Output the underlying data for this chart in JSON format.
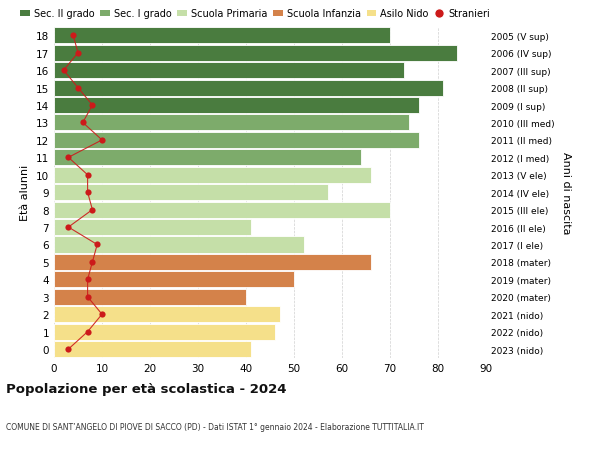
{
  "ages": [
    18,
    17,
    16,
    15,
    14,
    13,
    12,
    11,
    10,
    9,
    8,
    7,
    6,
    5,
    4,
    3,
    2,
    1,
    0
  ],
  "bar_values": [
    70,
    84,
    73,
    81,
    76,
    74,
    76,
    64,
    66,
    57,
    70,
    41,
    52,
    66,
    50,
    40,
    47,
    46,
    41
  ],
  "bar_colors": [
    "#4a7c3f",
    "#4a7c3f",
    "#4a7c3f",
    "#4a7c3f",
    "#4a7c3f",
    "#7dab6b",
    "#7dab6b",
    "#7dab6b",
    "#c5dfa8",
    "#c5dfa8",
    "#c5dfa8",
    "#c5dfa8",
    "#c5dfa8",
    "#d4824a",
    "#d4824a",
    "#d4824a",
    "#f5e08a",
    "#f5e08a",
    "#f5e08a"
  ],
  "stranieri_values": [
    4,
    5,
    2,
    5,
    8,
    6,
    10,
    3,
    7,
    7,
    8,
    3,
    9,
    8,
    7,
    7,
    10,
    7,
    3
  ],
  "right_labels": [
    "2005 (V sup)",
    "2006 (IV sup)",
    "2007 (III sup)",
    "2008 (II sup)",
    "2009 (I sup)",
    "2010 (III med)",
    "2011 (II med)",
    "2012 (I med)",
    "2013 (V ele)",
    "2014 (IV ele)",
    "2015 (III ele)",
    "2016 (II ele)",
    "2017 (I ele)",
    "2018 (mater)",
    "2019 (mater)",
    "2020 (mater)",
    "2021 (nido)",
    "2022 (nido)",
    "2023 (nido)"
  ],
  "legend_labels": [
    "Sec. II grado",
    "Sec. I grado",
    "Scuola Primaria",
    "Scuola Infanzia",
    "Asilo Nido",
    "Stranieri"
  ],
  "legend_colors": [
    "#4a7c3f",
    "#7dab6b",
    "#c5dfa8",
    "#d4824a",
    "#f5e08a",
    "#cc1a1a"
  ],
  "ylabel": "Età alunni",
  "right_ylabel": "Anni di nascita",
  "title": "Popolazione per età scolastica - 2024",
  "subtitle": "COMUNE DI SANT’ANGELO DI PIOVE DI SACCO (PD) - Dati ISTAT 1° gennaio 2024 - Elaborazione TUTTITALIA.IT",
  "xlim": [
    0,
    90
  ],
  "xticks": [
    0,
    10,
    20,
    30,
    40,
    50,
    60,
    70,
    80,
    90
  ],
  "background_color": "#ffffff",
  "grid_color": "#d0d0d0",
  "stranieri_color": "#cc1a1a"
}
